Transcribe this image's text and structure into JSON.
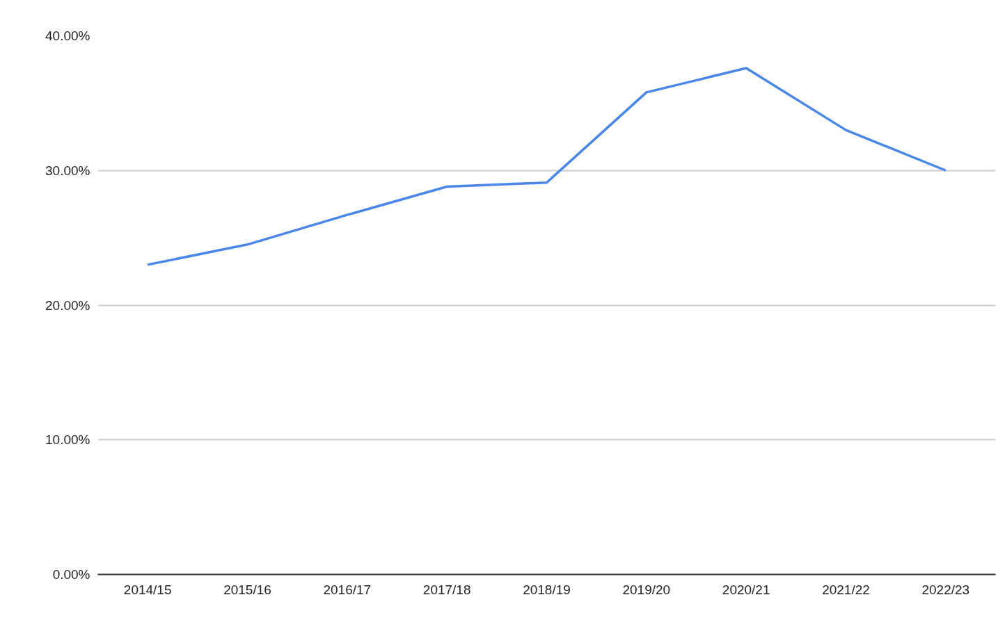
{
  "chart_data": {
    "type": "line",
    "categories": [
      "2014/15",
      "2015/16",
      "2016/17",
      "2017/18",
      "2018/19",
      "2019/20",
      "2020/21",
      "2021/22",
      "2022/23"
    ],
    "series": [
      {
        "color": "#4a86e8",
        "values": [
          23.0,
          24.5,
          26.7,
          28.8,
          29.1,
          35.8,
          37.6,
          33.0,
          30.0
        ]
      }
    ],
    "ylim": [
      0,
      40
    ],
    "yticks": [
      {
        "value": 0,
        "label": "0.00%"
      },
      {
        "value": 10,
        "label": "10.00%"
      },
      {
        "value": 20,
        "label": "20.00%"
      },
      {
        "value": 30,
        "label": "30.00%"
      },
      {
        "value": 40,
        "label": "40.00%"
      }
    ],
    "grid": "y",
    "line_style": "solid",
    "marker": "none"
  }
}
